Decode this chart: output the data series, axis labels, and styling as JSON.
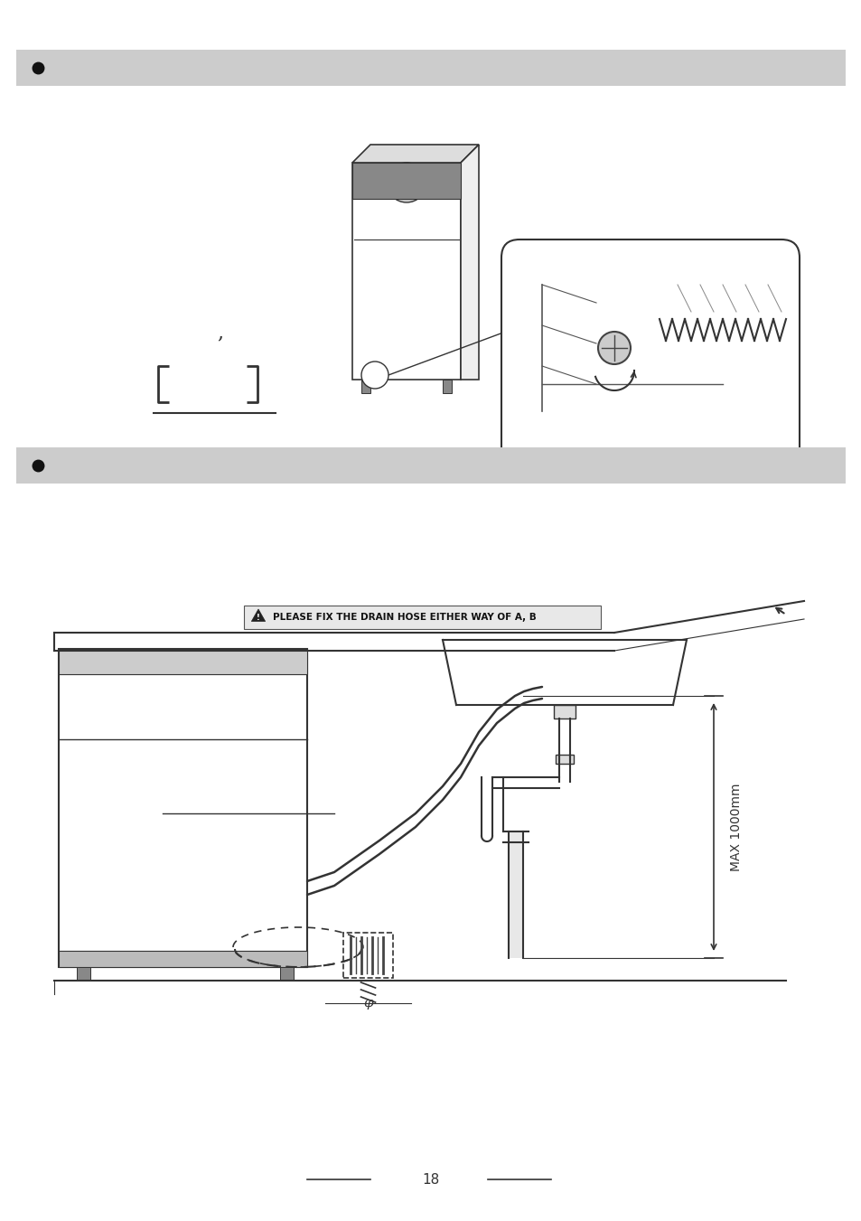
{
  "bg_color": "#ffffff",
  "header_bar_color": "#cccccc",
  "bullet_color": "#111111",
  "page_number": "18",
  "warning_text": "PLEASE FIX THE DRAIN HOSE EITHER WAY OF A, B",
  "max_label": "MAX 1000mm",
  "line_color": "#333333",
  "hose_color": "#333333"
}
